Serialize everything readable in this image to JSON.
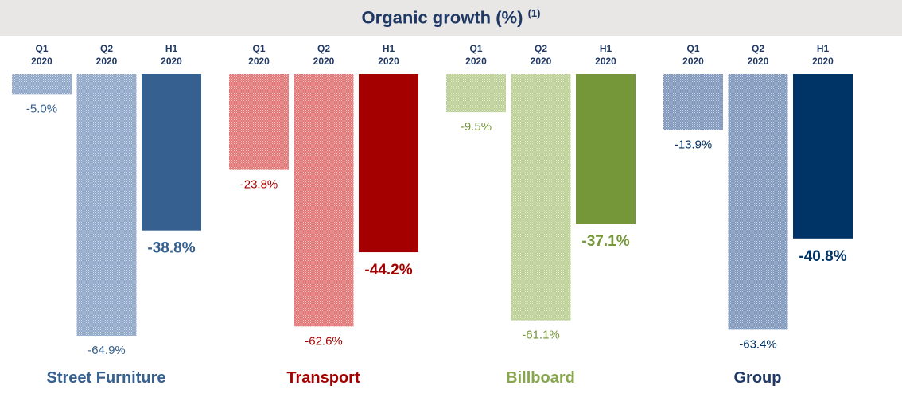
{
  "chart_data": {
    "type": "bar",
    "title": "Organic growth (%)",
    "title_note": "(1)",
    "periods": [
      [
        "Q1",
        "2020"
      ],
      [
        "Q2",
        "2020"
      ],
      [
        "H1",
        "2020"
      ]
    ],
    "ylim": [
      -70,
      0
    ],
    "groups": [
      {
        "name": "Street Furniture",
        "values": [
          -5.0,
          -64.9,
          -38.8
        ],
        "labels": [
          "-5.0%",
          "-64.9%",
          "-38.8%"
        ],
        "color": "#35608f",
        "light": "#8fa7c9",
        "label_color": "#35608f"
      },
      {
        "name": "Transport",
        "values": [
          -23.8,
          -62.6,
          -44.2
        ],
        "labels": [
          "-23.8%",
          "-62.6%",
          "-44.2%"
        ],
        "color": "#a50000",
        "light": "#e27575",
        "label_color": "#a50000"
      },
      {
        "name": "Billboard",
        "values": [
          -9.5,
          -61.1,
          -37.1
        ],
        "labels": [
          "-9.5%",
          "-61.1%",
          "-37.1%"
        ],
        "color": "#76963a",
        "light": "#bccf95",
        "label_color": "#88a64e"
      },
      {
        "name": "Group",
        "values": [
          -13.9,
          -63.4,
          -40.8
        ],
        "labels": [
          "-13.9%",
          "-63.4%",
          "-40.8%"
        ],
        "color": "#003366",
        "light": "#7f97bb",
        "label_color": "#1f3864"
      }
    ]
  }
}
